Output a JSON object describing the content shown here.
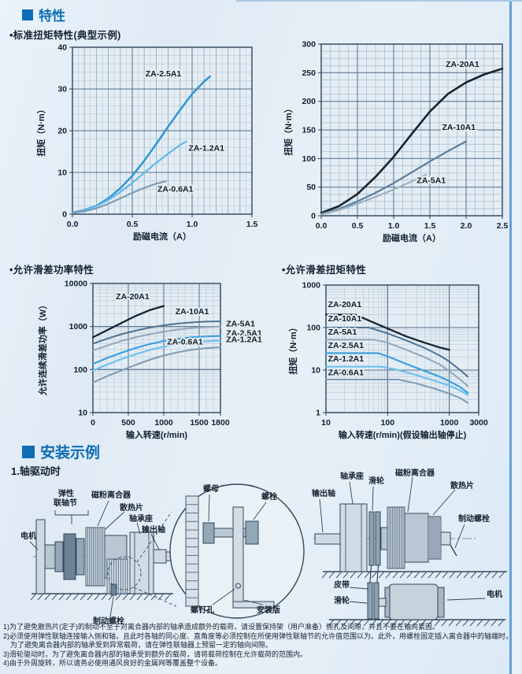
{
  "page": {
    "section1": "特性",
    "sub_standard_torque": "•标准扭矩特性(典型示例)",
    "sub_slip_power": "•允许滑差功率特性",
    "sub_slip_torque": "•允许滑差扭矩特性",
    "section2": "安装示例",
    "sub_shaft_drive": "1.轴驱动时"
  },
  "colors": {
    "accent_blue": "#0d6eb5",
    "curve_dark": "#17242e",
    "curve_blue": "#2f96d6",
    "curve_lightblue": "#67b9e9",
    "curve_gray": "#7d99b5"
  },
  "chart_data": [
    {
      "type": "line",
      "title": "标准扭矩特性(典型示例)",
      "xlabel": "励磁电流（A）",
      "ylabel": "扭矩（N·m）",
      "xscale": "linear",
      "yscale": "linear",
      "xlim": [
        0,
        1.5
      ],
      "ylim": [
        0,
        40
      ],
      "xticks": {
        "v": [
          0,
          0.5,
          1,
          1.5
        ],
        "l": [
          "0.0",
          "0.5",
          "1.0",
          "1.5"
        ]
      },
      "yticks": {
        "v": [
          0,
          10,
          20,
          30,
          40
        ],
        "l": [
          "0",
          "10",
          "20",
          "30",
          "40"
        ]
      },
      "xminor": 0.05,
      "xmid": 0.1,
      "yminor": 2,
      "ymid": 10,
      "grid": true,
      "legend": "inline",
      "series": [
        {
          "name": "ZA-2.5A1",
          "color": "#2f96d6",
          "w": 2.5,
          "x": [
            0,
            0.1,
            0.2,
            0.3,
            0.4,
            0.5,
            0.6,
            0.7,
            0.8,
            0.9,
            1.0,
            1.1,
            1.15
          ],
          "y": [
            0.4,
            1,
            2,
            3.8,
            6.2,
            9.2,
            12.8,
            16.8,
            21,
            25,
            28.8,
            31.8,
            33
          ]
        },
        {
          "name": "ZA-1.2A1",
          "color": "#67b9e9",
          "w": 2.3,
          "x": [
            0,
            0.1,
            0.2,
            0.3,
            0.4,
            0.5,
            0.6,
            0.7,
            0.8,
            0.9,
            0.95
          ],
          "y": [
            0.4,
            0.9,
            1.9,
            3.4,
            5.3,
            7.5,
            9.9,
            12.3,
            14.5,
            16.6,
            17.4
          ]
        },
        {
          "name": "ZA-0.6A1",
          "color": "#7d99b5",
          "w": 2.1,
          "x": [
            0,
            0.1,
            0.2,
            0.3,
            0.4,
            0.5,
            0.6,
            0.7,
            0.78
          ],
          "y": [
            0.3,
            0.7,
            1.4,
            2.5,
            3.8,
            5.1,
            6.3,
            7.3,
            7.9
          ]
        }
      ],
      "labels": [
        {
          "t": "ZA-2.5A1",
          "x": 0.76,
          "y": 33,
          "a": "m"
        },
        {
          "t": "ZA-1.2A1",
          "x": 1.12,
          "y": 15.2,
          "a": "m"
        },
        {
          "t": "ZA-0.6A1",
          "x": 0.86,
          "y": 5.4,
          "a": "m"
        }
      ]
    },
    {
      "type": "line",
      "title": "标准扭矩特性(典型示例)",
      "xlabel": "励磁电流（A）",
      "ylabel": "扭矩（N·m）",
      "xscale": "linear",
      "yscale": "linear",
      "xlim": [
        0,
        2.5
      ],
      "ylim": [
        0,
        300
      ],
      "xticks": {
        "v": [
          0,
          0.5,
          1,
          1.5,
          2,
          2.5
        ],
        "l": [
          "0.0",
          "0.5",
          "1.0",
          "1.5",
          "2.0",
          "2.5"
        ]
      },
      "yticks": {
        "v": [
          0,
          50,
          100,
          150,
          200,
          250,
          300
        ],
        "l": [
          "0",
          "50",
          "100",
          "150",
          "200",
          "250",
          "300"
        ]
      },
      "xminor": 0.125,
      "xmid": 0,
      "yminor": 12.5,
      "ymid": 0,
      "minor_strong": true,
      "grid": true,
      "legend": "inline",
      "series": [
        {
          "name": "ZA-20A1",
          "color": "#17242e",
          "w": 2.6,
          "x": [
            0,
            0.25,
            0.5,
            0.75,
            1,
            1.25,
            1.5,
            1.75,
            2,
            2.25,
            2.5
          ],
          "y": [
            5,
            17,
            38,
            68,
            103,
            143,
            182,
            213,
            233,
            247,
            257
          ]
        },
        {
          "name": "ZA-10A1",
          "color": "#5d7f9d",
          "w": 2.2,
          "x": [
            0,
            0.25,
            0.5,
            0.75,
            1,
            1.25,
            1.5,
            1.75,
            2
          ],
          "y": [
            3,
            12,
            25,
            40,
            57,
            76,
            95,
            113,
            130
          ]
        },
        {
          "name": "ZA-5A1",
          "color": "#9db0c0",
          "w": 2.2,
          "x": [
            0,
            0.25,
            0.5,
            0.75,
            1,
            1.25,
            1.45
          ],
          "y": [
            2,
            10,
            21,
            33,
            46,
            60,
            72
          ]
        }
      ],
      "labels": [
        {
          "t": "ZA-20A1",
          "x": 1.95,
          "y": 260,
          "a": "m"
        },
        {
          "t": "ZA-10A1",
          "x": 1.9,
          "y": 150,
          "a": "m"
        },
        {
          "t": "ZA-5A1",
          "x": 1.52,
          "y": 57,
          "a": "m"
        }
      ]
    },
    {
      "type": "line",
      "title": "允许滑差功率特性",
      "xlabel": "输入转速(r/min)",
      "ylabel": "允许连续滑差功率（W）",
      "xscale": "linear",
      "yscale": "log",
      "xlim": [
        0,
        1800
      ],
      "ylim": [
        10,
        10000
      ],
      "xticks": {
        "v": [
          0,
          500,
          1000,
          1500,
          1800
        ],
        "l": [
          "0",
          "500",
          "1000",
          "1500",
          "1800"
        ]
      },
      "yticks": {
        "v": [
          10,
          100,
          1000,
          10000
        ],
        "l": [
          "10",
          "100",
          "1000",
          "10000"
        ]
      },
      "xminor": 100,
      "xmid": 0,
      "yminor": 0,
      "ymid": 0,
      "grid": true,
      "legend": "inline",
      "series": [
        {
          "name": "ZA-20A1",
          "color": "#17242e",
          "w": 2.3,
          "x": [
            0,
            200,
            400,
            600,
            800,
            1000
          ],
          "y": [
            560,
            820,
            1200,
            1750,
            2400,
            3000
          ]
        },
        {
          "name": "ZA-10A1",
          "color": "#4f7391",
          "w": 2,
          "x": [
            0,
            200,
            400,
            600,
            800,
            1000,
            1200,
            1400,
            1600,
            1800
          ],
          "y": [
            400,
            520,
            660,
            800,
            940,
            1070,
            1170,
            1250,
            1300,
            1320
          ]
        },
        {
          "name": "ZA-5A1",
          "color": "#93a7b8",
          "w": 2,
          "x": [
            0,
            200,
            400,
            600,
            800,
            1000,
            1200,
            1400,
            1600,
            1800
          ],
          "y": [
            275,
            360,
            460,
            560,
            660,
            760,
            850,
            920,
            970,
            1000
          ]
        },
        {
          "name": "ZA-2.5A1",
          "color": "#3da0e0",
          "w": 2.2,
          "x": [
            0,
            200,
            400,
            600,
            800,
            1000,
            1200,
            1400,
            1600,
            1800
          ],
          "y": [
            135,
            185,
            245,
            315,
            390,
            460,
            520,
            560,
            590,
            605
          ]
        },
        {
          "name": "ZA-1.2A1",
          "color": "#6fc0ee",
          "w": 2.2,
          "x": [
            0,
            200,
            400,
            600,
            800,
            1000,
            1200,
            1400,
            1600,
            1800
          ],
          "y": [
            95,
            130,
            175,
            225,
            285,
            340,
            390,
            430,
            455,
            470
          ]
        },
        {
          "name": "ZA-0.6A1",
          "color": "#7e9ab4",
          "w": 2,
          "x": [
            0,
            200,
            400,
            600,
            800,
            1000,
            1200,
            1400,
            1600,
            1800
          ],
          "y": [
            50,
            70,
            95,
            128,
            168,
            212,
            252,
            288,
            315,
            330
          ]
        }
      ],
      "labels": [
        {
          "t": "ZA-20A1",
          "x": 560,
          "y": 4300,
          "a": "m"
        },
        {
          "t": "ZA-10A1",
          "x": 1400,
          "y": 1950,
          "a": "m"
        },
        {
          "t": "ZA-5A1",
          "x": 1880,
          "y": 1000,
          "a": "s"
        },
        {
          "t": "ZA-2.5A1",
          "x": 1880,
          "y": 610,
          "a": "s"
        },
        {
          "t": "ZA-1.2A1",
          "x": 1880,
          "y": 435,
          "a": "s"
        },
        {
          "t": "ZA-0.6A1",
          "x": 1300,
          "y": 380,
          "a": "m"
        }
      ]
    },
    {
      "type": "line",
      "title": "允许滑差扭矩特性",
      "xlabel": "输入转速(r/min)(假设输出轴停止)",
      "ylabel": "扭矩（N·m）",
      "xscale": "log",
      "yscale": "log",
      "xlim": [
        10,
        3000
      ],
      "ylim": [
        1,
        1000
      ],
      "xticks": {
        "v": [
          10,
          100,
          1000,
          3000
        ],
        "l": [
          "10",
          "100",
          "1000",
          "3000"
        ]
      },
      "yticks": {
        "v": [
          1,
          10,
          100,
          1000
        ],
        "l": [
          "1",
          "10",
          "100",
          "1000"
        ]
      },
      "xminor": 0,
      "xmid": 0,
      "yminor": 0,
      "ymid": 0,
      "grid": true,
      "legend": "inline",
      "series": [
        {
          "name": "ZA-20A1",
          "color": "#17242e",
          "w": 2.3,
          "x": [
            10,
            30,
            60,
            100,
            200,
            400,
            700,
            1000
          ],
          "y": [
            200,
            200,
            130,
            95,
            62,
            44,
            34,
            30
          ]
        },
        {
          "name": "ZA-10A1",
          "color": "#4f7391",
          "w": 2,
          "x": [
            10,
            50,
            100,
            200,
            400,
            700,
            1000,
            1500,
            2000
          ],
          "y": [
            100,
            100,
            73,
            50,
            33,
            22,
            16,
            10,
            7
          ]
        },
        {
          "name": "ZA-5A1",
          "color": "#93a7b8",
          "w": 2,
          "x": [
            10,
            60,
            100,
            200,
            400,
            700,
            1000,
            1500,
            2000
          ],
          "y": [
            52,
            52,
            44,
            30,
            20,
            13.5,
            9.5,
            6,
            4.2
          ]
        },
        {
          "name": "ZA-2.5A1",
          "color": "#3da0e0",
          "w": 2.2,
          "x": [
            10,
            70,
            100,
            200,
            400,
            700,
            1000,
            1500,
            2000
          ],
          "y": [
            25,
            25,
            21,
            14,
            9.5,
            7,
            5.5,
            4,
            2.9
          ]
        },
        {
          "name": "ZA-1.2A1",
          "color": "#6fc0ee",
          "w": 2.2,
          "x": [
            10,
            80,
            150,
            300,
            600,
            1000,
            1500,
            2000
          ],
          "y": [
            12,
            12,
            10,
            7.5,
            5.5,
            4.3,
            3.3,
            2.6
          ]
        },
        {
          "name": "ZA-0.6A1",
          "color": "#7e9ab4",
          "w": 2,
          "x": [
            10,
            150,
            300,
            600,
            1000,
            1500,
            2000
          ],
          "y": [
            6,
            6,
            4.8,
            3.6,
            2.8,
            2.2,
            1.7
          ]
        }
      ],
      "labels": [
        {
          "t": "ZA-20A1",
          "x": 10.8,
          "y": 300,
          "a": "s"
        },
        {
          "t": "ZA-10A1",
          "x": 10.8,
          "y": 140,
          "a": "s"
        },
        {
          "t": "ZA-5A1",
          "x": 10.8,
          "y": 68,
          "a": "s"
        },
        {
          "t": "ZA-2.5A1",
          "x": 10.8,
          "y": 33,
          "a": "s"
        },
        {
          "t": "ZA-1.2A1",
          "x": 10.8,
          "y": 16,
          "a": "s"
        },
        {
          "t": "ZA-0.6A1",
          "x": 10.8,
          "y": 7.6,
          "a": "s"
        }
      ]
    }
  ],
  "diagram_shaft": {
    "labels": {
      "motor": "电机",
      "coupling_l1": "弹性",
      "coupling_l2": "联轴节",
      "clutch": "磁粉离合器",
      "fins": "散热片",
      "bearing": "轴承座",
      "output_shaft": "输出轴",
      "brake_bolt": "制动螺栓"
    },
    "inset_labels": {
      "nut": "螺母",
      "bolt": "螺栓",
      "screw_hole": "螺钉孔",
      "mount_plate": "安装版"
    }
  },
  "diagram_pulley": {
    "labels": {
      "output_shaft": "输出轴",
      "bearing": "轴承座",
      "pulley_top": "滑轮",
      "clutch": "磁粉离合器",
      "fins": "散热片",
      "brake_bolt": "制动螺栓",
      "belt": "皮带",
      "pulley_bottom": "滑轮",
      "motor": "电机"
    }
  },
  "footnotes": [
    "1)为了避免散热片(定子)的制动不至于对离合器内部的轴承造成额外的载荷，请设置保持架（用户准备）侧孔及间隙，并且不要在轴向紧固。",
    "2)必须使用弹性联轴连接输入侧和轴，且此时各轴的同心度、直角度等必须控制在所使用弹性联轴节的允许值范围以为。此外，用螺栓固定插入离合器中的轴端时，为了避免离合器内部的轴承受到异常载荷，请在弹性联轴器上预留一定的轴向间隙。",
    "3)滑轮驱动时，为了避免离合器内部的轴承受到额外的载荷，请将载荷控制在允许载荷的范围内。",
    "4)由于外周旋转，所以请务必使用通风良好的金属网等覆盖整个设备。"
  ]
}
